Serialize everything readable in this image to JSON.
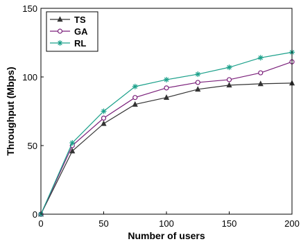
{
  "chart_data": {
    "type": "line",
    "title": "",
    "xlabel": "Number of users",
    "ylabel": "Throughput (Mbps)",
    "xlim": [
      0,
      200
    ],
    "ylim": [
      0,
      150
    ],
    "xticks": [
      0,
      50,
      100,
      150,
      200
    ],
    "yticks": [
      0,
      50,
      100,
      150
    ],
    "grid": false,
    "legend_position": "top-left",
    "x": [
      0,
      25,
      50,
      75,
      100,
      125,
      150,
      175,
      200
    ],
    "series": [
      {
        "name": "TS",
        "color": "#333333",
        "marker": "triangle",
        "values": [
          0,
          46,
          66,
          80,
          85,
          91,
          94,
          95,
          95.5
        ]
      },
      {
        "name": "GA",
        "color": "#7a1f7a",
        "marker": "circle",
        "values": [
          0,
          50,
          70,
          85,
          92,
          96,
          98,
          103,
          111
        ]
      },
      {
        "name": "RL",
        "color": "#1aa08a",
        "marker": "asterisk",
        "values": [
          0,
          52,
          75,
          93,
          98,
          102,
          107,
          114,
          118
        ]
      }
    ]
  }
}
